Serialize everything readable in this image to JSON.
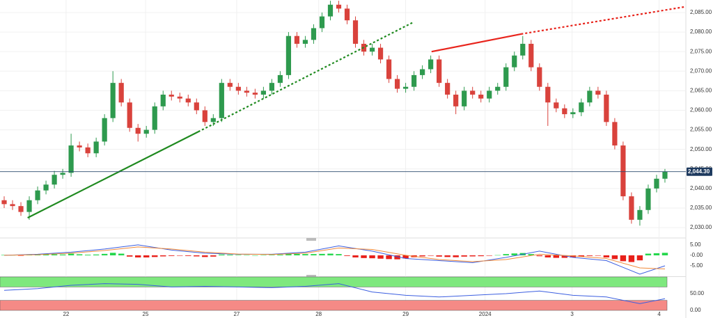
{
  "chart_data": [
    {
      "type": "candlestick",
      "grid": true,
      "xlim": [
        -0.5,
        81.5
      ],
      "xticks": [
        {
          "value": 7.4,
          "label": "22"
        },
        {
          "value": 16.9,
          "label": "25"
        },
        {
          "value": 27.8,
          "label": "27"
        },
        {
          "value": 37.6,
          "label": "28"
        },
        {
          "value": 48.0,
          "label": "29"
        },
        {
          "value": 57.5,
          "label": "2024"
        },
        {
          "value": 67.9,
          "label": "3"
        },
        {
          "value": 78.3,
          "label": "4"
        }
      ],
      "ylim": [
        2027.7,
        2088.2
      ],
      "yticks": [
        {
          "value": 2030,
          "label": "2,030.00"
        },
        {
          "value": 2035,
          "label": "2,035.00"
        },
        {
          "value": 2040,
          "label": "2,040.00"
        },
        {
          "value": 2045,
          "label": "2,045.00"
        },
        {
          "value": 2050,
          "label": "2,050.00"
        },
        {
          "value": 2055,
          "label": "2,055.00"
        },
        {
          "value": 2060,
          "label": "2,060.00"
        },
        {
          "value": 2065,
          "label": "2,065.00"
        },
        {
          "value": 2070,
          "label": "2,070.00"
        },
        {
          "value": 2075,
          "label": "2,075.00"
        },
        {
          "value": 2080,
          "label": "2,080.00"
        },
        {
          "value": 2085,
          "label": "2,085.00"
        }
      ],
      "up_color": "#2e9a4e",
      "down_color": "#d9423c",
      "open": [
        2037,
        2036,
        2035.5,
        2034,
        2037,
        2039.5,
        2041,
        2043.5,
        2044,
        2051,
        2050.5,
        2049,
        2052,
        2058,
        2067,
        2062,
        2055.5,
        2054,
        2055,
        2061,
        2064,
        2063.5,
        2063,
        2062,
        2060,
        2057,
        2058,
        2067,
        2066,
        2065,
        2064.5,
        2064,
        2065,
        2067,
        2069,
        2079,
        2077,
        2078,
        2081,
        2084,
        2087,
        2086,
        2083,
        2077,
        2075,
        2076,
        2073,
        2068,
        2065.5,
        2066,
        2069,
        2070.5,
        2073,
        2067,
        2064,
        2061,
        2065,
        2064,
        2063,
        2065,
        2066,
        2071,
        2074,
        2077,
        2071,
        2066,
        2062,
        2060.5,
        2059,
        2059.5,
        2062,
        2065,
        2064,
        2057,
        2051,
        2038,
        2032,
        2034.5,
        2040,
        2042.5
      ],
      "high": [
        2038,
        2037,
        2036.5,
        2038,
        2040.5,
        2042,
        2044.5,
        2045,
        2054,
        2052,
        2051.5,
        2053,
        2059,
        2070,
        2068,
        2063,
        2056.5,
        2056,
        2062,
        2065,
        2065,
        2064.5,
        2064,
        2063,
        2061,
        2059,
        2068,
        2068,
        2067,
        2066,
        2065.5,
        2066,
        2068,
        2070,
        2080,
        2080,
        2079,
        2082,
        2085,
        2088,
        2088,
        2087,
        2084,
        2078,
        2077,
        2077,
        2074,
        2069,
        2067,
        2070,
        2071.5,
        2074,
        2074,
        2068,
        2065,
        2066,
        2066,
        2065,
        2066,
        2067,
        2072,
        2075,
        2079,
        2078,
        2072,
        2067,
        2063,
        2061.5,
        2060.5,
        2063,
        2066,
        2066,
        2065,
        2058,
        2052,
        2039,
        2035.5,
        2041,
        2043.5,
        2045
      ],
      "low": [
        2035,
        2034.5,
        2033,
        2032,
        2036,
        2038.5,
        2040,
        2042.5,
        2043,
        2049.5,
        2048,
        2048,
        2051,
        2057,
        2061,
        2054.5,
        2052,
        2053,
        2054,
        2060,
        2062.5,
        2062,
        2061,
        2059,
        2056,
        2056,
        2057,
        2065,
        2064,
        2063.5,
        2063,
        2063,
        2064,
        2066,
        2068,
        2076,
        2076,
        2077,
        2080,
        2083,
        2085,
        2082,
        2076,
        2074,
        2074,
        2072,
        2067,
        2064.5,
        2064.5,
        2065,
        2068,
        2069.5,
        2066,
        2063,
        2059,
        2060,
        2063,
        2062,
        2062,
        2064,
        2065,
        2070,
        2073,
        2070,
        2065,
        2056,
        2059.5,
        2058,
        2058,
        2058.5,
        2061,
        2063,
        2056,
        2050,
        2037,
        2031,
        2030.5,
        2033.5,
        2039,
        2041.5
      ],
      "close": [
        2036,
        2035.5,
        2034,
        2037,
        2039.5,
        2041,
        2043.5,
        2044,
        2051,
        2050.5,
        2049,
        2052,
        2058,
        2067,
        2062,
        2055.5,
        2054,
        2055,
        2061,
        2064,
        2063.5,
        2063,
        2062,
        2060,
        2057,
        2058,
        2067,
        2066,
        2065,
        2064.5,
        2064,
        2065,
        2067,
        2069,
        2079,
        2077,
        2078,
        2081,
        2084,
        2087,
        2086,
        2083,
        2077,
        2075,
        2076,
        2073,
        2068,
        2065.5,
        2066,
        2069,
        2070.5,
        2073,
        2067,
        2064,
        2061,
        2065,
        2064,
        2063,
        2065,
        2066,
        2071,
        2074,
        2077,
        2071,
        2066,
        2062,
        2060.5,
        2059,
        2059.5,
        2062,
        2065,
        2064,
        2057,
        2051,
        2038,
        2032,
        2034.5,
        2040,
        2042.5,
        2044.3
      ],
      "last_price": {
        "value": 2044.3,
        "label": "2,044.30"
      },
      "trendlines": [
        {
          "color": "#1f8a1f",
          "points": [
            [
              2.8,
              2032.5
            ],
            [
              23.2,
              2054.5
            ],
            [
              48.9,
              2082.5
            ]
          ]
        },
        {
          "color": "#e8241c",
          "points": [
            [
              51.1,
              2075
            ],
            [
              61.8,
              2079.5
            ],
            [
              81.5,
              2086.5
            ]
          ]
        }
      ]
    },
    {
      "type": "macd",
      "ylim": [
        -10,
        7.3
      ],
      "yticks": [
        {
          "value": 5,
          "label": "5.00"
        },
        {
          "value": 0,
          "label": "-0.00"
        },
        {
          "value": -5,
          "label": "-5.00"
        }
      ],
      "histogram": {
        "up_color": "#22d64a",
        "down_color": "#e8201a",
        "values": [
          0.2,
          0.1,
          -0.2,
          0.3,
          0.5,
          0.6,
          0.5,
          0.4,
          0.8,
          0.5,
          0.3,
          0.4,
          0.7,
          1.2,
          0.8,
          -0.6,
          -1.0,
          -1.0,
          -0.8,
          -0.5,
          -0.3,
          -0.2,
          -0.3,
          -0.5,
          -0.8,
          -0.6,
          0.4,
          0.3,
          0.2,
          0.1,
          0.0,
          0.1,
          0.2,
          0.3,
          0.9,
          0.7,
          0.6,
          0.6,
          0.7,
          0.8,
          0.6,
          -0.3,
          -1.0,
          -1.3,
          -1.4,
          -1.6,
          -1.8,
          -1.9,
          -1.5,
          -0.9,
          -0.5,
          -0.2,
          -0.6,
          -0.8,
          -0.9,
          -0.6,
          -0.5,
          -0.4,
          -0.2,
          0.1,
          0.6,
          0.9,
          1.1,
          0.6,
          -0.4,
          -1.0,
          -1.2,
          -1.2,
          -1.0,
          -0.7,
          -0.3,
          -0.2,
          -1.0,
          -1.8,
          -2.8,
          -3.2,
          -2.4,
          0.8,
          1.0,
          1.2
        ]
      },
      "series": [
        {
          "color": "#3b5ee0",
          "x": [
            0,
            4,
            8,
            12,
            16,
            20,
            24,
            28,
            32,
            36,
            40,
            44,
            48,
            52,
            56,
            60,
            64,
            68,
            72,
            76,
            79
          ],
          "values": [
            0,
            0.5,
            1.5,
            3.0,
            5.0,
            2.5,
            1.0,
            0.5,
            0.5,
            1.5,
            4.5,
            2.0,
            -1.5,
            -2.5,
            -3.5,
            -1.0,
            2.0,
            -1.0,
            -2.5,
            -9.0,
            -5.0
          ]
        },
        {
          "color": "#f08a3a",
          "x": [
            0,
            4,
            8,
            12,
            16,
            20,
            24,
            28,
            32,
            36,
            40,
            44,
            48,
            52,
            56,
            60,
            64,
            68,
            72,
            76,
            79
          ],
          "values": [
            0,
            0.3,
            1.0,
            2.3,
            4.0,
            3.0,
            1.5,
            0.6,
            0.4,
            1.0,
            3.5,
            2.8,
            0.0,
            -2.0,
            -3.0,
            -2.0,
            0.5,
            -0.3,
            -1.5,
            -6.0,
            -6.5
          ]
        }
      ]
    },
    {
      "type": "rsi",
      "ylim": [
        -2,
        100
      ],
      "yticks": [
        {
          "value": 50,
          "label": "50.00"
        },
        {
          "value": 0,
          "label": "0.00"
        }
      ],
      "bands": [
        {
          "range": [
            70,
            100
          ],
          "color": "#7ee87e"
        },
        {
          "range": [
            0,
            30
          ],
          "color": "#f58a86"
        }
      ],
      "series": [
        {
          "color": "#3b5ee0",
          "x": [
            0,
            4,
            8,
            12,
            16,
            20,
            24,
            28,
            32,
            36,
            40,
            44,
            48,
            52,
            56,
            60,
            64,
            68,
            72,
            76,
            79
          ],
          "values": [
            60,
            65,
            75,
            80,
            78,
            70,
            72,
            70,
            68,
            72,
            80,
            55,
            45,
            40,
            45,
            50,
            58,
            45,
            40,
            20,
            35
          ]
        }
      ]
    }
  ]
}
